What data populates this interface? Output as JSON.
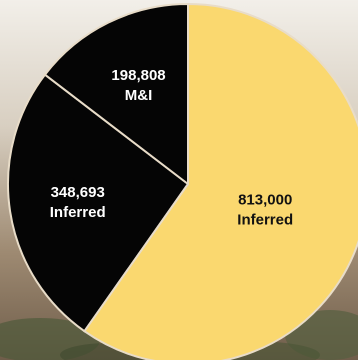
{
  "chart_data": {
    "type": "pie",
    "slices": [
      {
        "value": "348,693",
        "category": "Inferred",
        "amount": 348693,
        "color": "#050505",
        "text_color": "#ffffff"
      },
      {
        "value": "198,808",
        "category": "M&I",
        "amount": 198808,
        "color": "#050505",
        "text_color": "#ffffff"
      },
      {
        "value": "813,000",
        "category": "Inferred",
        "amount": 813000,
        "color": "#fad86f",
        "text_color": "#111111"
      }
    ],
    "title": "",
    "legend": "none"
  },
  "colors": {
    "separator": "#e8dcc8",
    "background_top": "#f2efe9",
    "background_bottom": "#6f5d4a"
  }
}
